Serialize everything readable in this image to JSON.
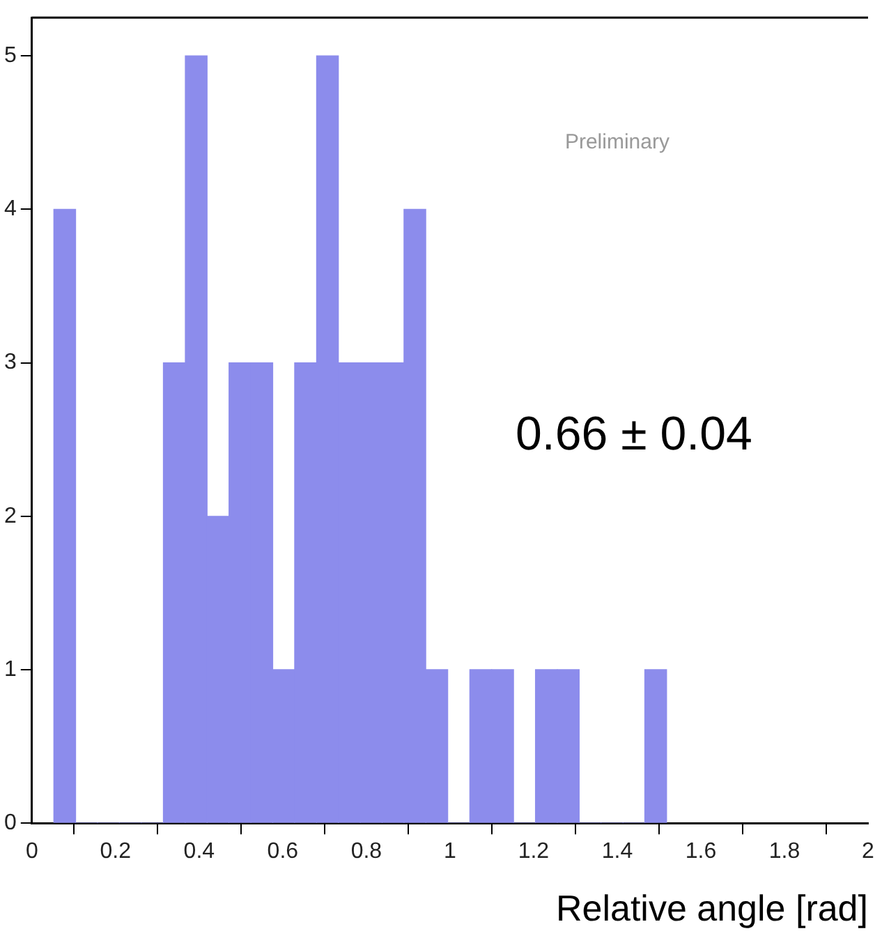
{
  "chart_data": {
    "type": "histogram",
    "xlabel": "Relative angle [rad]",
    "bins": [
      0.052,
      0.105,
      0.157,
      0.209,
      0.262,
      0.314,
      0.367,
      0.419,
      0.471,
      0.524,
      0.576,
      0.628,
      0.681,
      0.733,
      0.785,
      0.838,
      0.89,
      0.942,
      0.995,
      1.047,
      1.1,
      1.152,
      1.204,
      1.257,
      1.309,
      1.361,
      1.414,
      1.466,
      1.518
    ],
    "values": [
      4,
      0,
      0,
      0,
      0,
      3,
      5,
      2,
      3,
      3,
      1,
      3,
      5,
      3,
      3,
      3,
      4,
      1,
      0,
      1,
      1,
      0,
      1,
      1,
      0,
      0,
      0,
      1
    ],
    "color": "#8c8cec",
    "xlim": [
      0,
      2
    ],
    "xticks": [
      0,
      0.2,
      0.4,
      0.6,
      0.8,
      1,
      1.2,
      1.4,
      1.6,
      1.8,
      2
    ],
    "ylim": [
      0,
      5.25
    ],
    "yticks": [
      0,
      1,
      2,
      3,
      4,
      5
    ],
    "grid": false,
    "legend": false,
    "annotations": [
      "0.66 ± 0.04",
      "Preliminary"
    ]
  }
}
